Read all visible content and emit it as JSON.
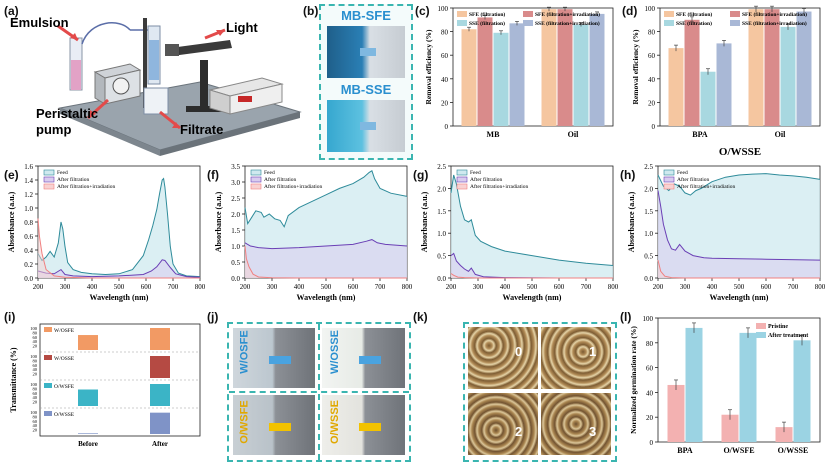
{
  "panels": {
    "a": {
      "label": "(a)",
      "callouts": [
        "Emulsion",
        "Light",
        "Peristaltic pump",
        "Filtrate"
      ]
    },
    "b": {
      "label": "(b)",
      "photo_labels": [
        "MB-SFE",
        "MB-SSE"
      ]
    },
    "c": {
      "label": "(c)"
    },
    "d": {
      "label": "(d)",
      "group_title": "O/WSSE"
    },
    "e": {
      "label": "(e)"
    },
    "f": {
      "label": "(f)"
    },
    "g": {
      "label": "(g)"
    },
    "h": {
      "label": "(h)"
    },
    "i": {
      "label": "(i)"
    },
    "j": {
      "label": "(j)",
      "photo_labels": [
        "W/OSFE",
        "W/OSSE",
        "O/WSFE",
        "O/WSSE"
      ]
    },
    "k": {
      "label": "(k)",
      "photo_labels": [
        "0",
        "1",
        "2",
        "3"
      ]
    },
    "l": {
      "label": "(l)"
    }
  },
  "colors": {
    "sfe_filtration": "#f5c6a0",
    "sfe_irradiation": "#d98b8b",
    "sse_filtration": "#a8d8e0",
    "sse_irradiation": "#a9b8d6",
    "feed_fill": "#cfe9ef",
    "feed_line": "#2e8b9a",
    "after_filtration": "#6a3fb5",
    "after_irradiation": "#f08080",
    "pristine": "#f3b1b1",
    "after_treatment": "#9bd3e3",
    "dash": "#3ab5b0"
  },
  "chart_data": [
    {
      "id": "c",
      "type": "bar",
      "ylabel": "Removal efficiency (%)",
      "categories": [
        "MB",
        "Oil"
      ],
      "ylim": [
        0,
        100
      ],
      "yticks": [
        0,
        20,
        40,
        60,
        80,
        100
      ],
      "legend": [
        "SFE (filtration)",
        "SFE (filtration+irradiation)",
        "SSE (filtration)",
        "SSE (filtration+irradiation)"
      ],
      "legend_position": "top",
      "series": [
        {
          "name": "SFE (filtration)",
          "values": [
            82,
            99
          ]
        },
        {
          "name": "SFE (filtration+irradiation)",
          "values": [
            92,
            99
          ]
        },
        {
          "name": "SSE (filtration)",
          "values": [
            79,
            86
          ]
        },
        {
          "name": "SSE (filtration+irradiation)",
          "values": [
            87,
            95
          ]
        }
      ]
    },
    {
      "id": "d",
      "type": "bar",
      "ylabel": "Removal efficiency (%)",
      "categories": [
        "BPA",
        "Oil"
      ],
      "ylim": [
        0,
        100
      ],
      "yticks": [
        0,
        20,
        40,
        60,
        80,
        100
      ],
      "legend": [
        "SFE (filtration)",
        "SFE (filtration+irradiation)",
        "SSE (filtration)",
        "SSE (filtration+irradiation)"
      ],
      "legend_position": "top",
      "series": [
        {
          "name": "SFE (filtration)",
          "values": [
            66,
            99
          ]
        },
        {
          "name": "SFE (filtration+irradiation)",
          "values": [
            90,
            99
          ]
        },
        {
          "name": "SSE (filtration)",
          "values": [
            46,
            84
          ]
        },
        {
          "name": "SSE (filtration+irradiation)",
          "values": [
            70,
            97
          ]
        }
      ]
    },
    {
      "id": "e",
      "type": "line",
      "xlabel": "Wavelength (nm)",
      "ylabel": "Absorbance (a.u.)",
      "xlim": [
        200,
        800
      ],
      "ylim": [
        0,
        1.6
      ],
      "xticks": [
        200,
        300,
        400,
        500,
        600,
        700,
        800
      ],
      "yticks": [
        0.0,
        0.2,
        0.4,
        0.6,
        0.8,
        1.0,
        1.2,
        1.4,
        1.6
      ],
      "legend": [
        "Feed",
        "After filtration",
        "After filtration+irradiation"
      ],
      "series": [
        {
          "name": "Feed",
          "x": [
            200,
            215,
            230,
            245,
            260,
            275,
            285,
            292,
            300,
            310,
            330,
            360,
            400,
            450,
            500,
            550,
            590,
            610,
            625,
            640,
            650,
            660,
            665,
            670,
            680,
            690,
            700,
            720,
            750,
            800
          ],
          "y": [
            0.35,
            0.25,
            0.3,
            0.38,
            0.3,
            0.5,
            0.8,
            0.7,
            0.45,
            0.22,
            0.12,
            0.08,
            0.06,
            0.05,
            0.06,
            0.12,
            0.32,
            0.55,
            0.75,
            0.98,
            1.2,
            1.4,
            1.42,
            1.3,
            0.9,
            0.45,
            0.2,
            0.07,
            0.03,
            0.02
          ]
        },
        {
          "name": "After filtration",
          "x": [
            200,
            230,
            260,
            285,
            300,
            330,
            400,
            500,
            590,
            620,
            640,
            660,
            670,
            690,
            710,
            750,
            800
          ],
          "y": [
            0.1,
            0.07,
            0.06,
            0.12,
            0.05,
            0.03,
            0.02,
            0.03,
            0.05,
            0.1,
            0.16,
            0.26,
            0.25,
            0.15,
            0.06,
            0.02,
            0.01
          ]
        },
        {
          "name": "After filtration+irradiation",
          "x": [
            200,
            205,
            215,
            230,
            260,
            300,
            400,
            600,
            800
          ],
          "y": [
            0.85,
            0.6,
            0.35,
            0.12,
            0.03,
            0.01,
            0.0,
            0.0,
            0.0
          ]
        }
      ]
    },
    {
      "id": "f",
      "type": "line",
      "xlabel": "Wavelength (nm)",
      "ylabel": "Absorbance (a.u.)",
      "xlim": [
        200,
        800
      ],
      "ylim": [
        0,
        3.5
      ],
      "xticks": [
        200,
        300,
        400,
        500,
        600,
        700,
        800
      ],
      "yticks": [
        0.0,
        0.5,
        1.0,
        1.5,
        2.0,
        2.5,
        3.0,
        3.5
      ],
      "legend": [
        "Feed",
        "After filtration",
        "After filtration+irradiation"
      ],
      "series": [
        {
          "name": "Feed",
          "x": [
            200,
            210,
            225,
            240,
            260,
            270,
            290,
            310,
            330,
            345,
            360,
            400,
            450,
            500,
            550,
            600,
            640,
            660,
            670,
            680,
            700,
            740,
            800
          ],
          "y": [
            2.2,
            1.7,
            1.9,
            2.1,
            2.05,
            1.9,
            2.0,
            1.85,
            1.8,
            1.6,
            1.95,
            2.2,
            2.4,
            2.6,
            2.8,
            2.95,
            3.15,
            3.3,
            3.35,
            3.1,
            2.8,
            2.65,
            2.55
          ]
        },
        {
          "name": "After filtration",
          "x": [
            200,
            220,
            250,
            300,
            400,
            500,
            600,
            650,
            670,
            690,
            720,
            800
          ],
          "y": [
            1.1,
            1.0,
            0.95,
            0.92,
            0.95,
            1.0,
            1.05,
            1.15,
            1.2,
            1.1,
            1.05,
            1.0
          ]
        },
        {
          "name": "After filtration+irradiation",
          "x": [
            200,
            205,
            215,
            230,
            250,
            300,
            400,
            800
          ],
          "y": [
            1.0,
            0.6,
            0.35,
            0.12,
            0.03,
            0.01,
            0.0,
            0.0
          ]
        }
      ]
    },
    {
      "id": "g",
      "type": "line",
      "xlabel": "Wavelength (nm)",
      "ylabel": "Absorbance (a.u.)",
      "xlim": [
        200,
        800
      ],
      "ylim": [
        0,
        2.5
      ],
      "xticks": [
        200,
        300,
        400,
        500,
        600,
        700,
        800
      ],
      "yticks": [
        0.0,
        0.5,
        1.0,
        1.5,
        2.0,
        2.5
      ],
      "legend": [
        "Feed",
        "After filtration",
        "After filtration+irradiation"
      ],
      "series": [
        {
          "name": "Feed",
          "x": [
            200,
            210,
            220,
            235,
            250,
            265,
            275,
            290,
            310,
            350,
            400,
            450,
            500,
            600,
            700,
            800
          ],
          "y": [
            1.9,
            2.3,
            2.1,
            1.6,
            1.3,
            1.25,
            1.3,
            0.95,
            0.82,
            0.7,
            0.6,
            0.55,
            0.5,
            0.4,
            0.33,
            0.28
          ]
        },
        {
          "name": "After filtration",
          "x": [
            200,
            210,
            220,
            235,
            250,
            265,
            275,
            290,
            320,
            400,
            600,
            800
          ],
          "y": [
            0.5,
            0.55,
            0.38,
            0.28,
            0.2,
            0.15,
            0.22,
            0.08,
            0.03,
            0.01,
            0.0,
            0.0
          ]
        },
        {
          "name": "After filtration+irradiation",
          "x": [
            200,
            210,
            225,
            250,
            300,
            400,
            800
          ],
          "y": [
            0.1,
            0.06,
            0.02,
            0.01,
            0.0,
            0.0,
            0.0
          ]
        }
      ]
    },
    {
      "id": "h",
      "type": "line",
      "xlabel": "Wavelength (nm)",
      "ylabel": "Absorbance (a.u.)",
      "xlim": [
        200,
        800
      ],
      "ylim": [
        0,
        2.5
      ],
      "xticks": [
        200,
        300,
        400,
        500,
        600,
        700,
        800
      ],
      "yticks": [
        0.0,
        0.5,
        1.0,
        1.5,
        2.0,
        2.5
      ],
      "legend": [
        "Feed",
        "After filtration",
        "After filtration+irradiation"
      ],
      "series": [
        {
          "name": "Feed",
          "x": [
            200,
            220,
            240,
            260,
            280,
            300,
            320,
            340,
            360,
            400,
            450,
            500,
            550,
            600,
            650,
            700,
            750,
            800
          ],
          "y": [
            2.3,
            2.05,
            1.95,
            2.1,
            2.05,
            1.9,
            1.85,
            1.95,
            2.0,
            2.15,
            2.25,
            2.3,
            2.32,
            2.33,
            2.3,
            2.28,
            2.25,
            2.2
          ]
        },
        {
          "name": "After filtration",
          "x": [
            200,
            210,
            220,
            235,
            250,
            265,
            280,
            300,
            330,
            370,
            400,
            500,
            600,
            800
          ],
          "y": [
            1.95,
            1.6,
            1.2,
            0.85,
            0.65,
            0.62,
            0.75,
            0.6,
            0.5,
            0.45,
            0.44,
            0.43,
            0.42,
            0.4
          ]
        },
        {
          "name": "After filtration+irradiation",
          "x": [
            200,
            210,
            225,
            250,
            300,
            400,
            800
          ],
          "y": [
            0.4,
            0.15,
            0.04,
            0.01,
            0.0,
            0.0,
            0.0
          ]
        }
      ]
    },
    {
      "id": "i",
      "type": "bar",
      "xlabel": "",
      "ylabel": "Transmittance (%)",
      "categories": [
        "Before",
        "After"
      ],
      "yticks": [
        20,
        40,
        60,
        80,
        100
      ],
      "groups": [
        {
          "name": "W/OSFE",
          "values": [
            68,
            100
          ]
        },
        {
          "name": "W/OSSE",
          "values": [
            0,
            100
          ]
        },
        {
          "name": "O/WSFE",
          "values": [
            75,
            100
          ]
        },
        {
          "name": "O/WSSE",
          "values": [
            3,
            97
          ]
        }
      ]
    },
    {
      "id": "l",
      "type": "bar",
      "ylabel": "Normalized germination rate (%)",
      "categories": [
        "BPA",
        "O/WSFE",
        "O/WSSE"
      ],
      "ylim": [
        0,
        100
      ],
      "yticks": [
        0,
        20,
        40,
        60,
        80,
        100
      ],
      "legend": [
        "Pristine",
        "After treatment"
      ],
      "legend_position": "top-right",
      "series": [
        {
          "name": "Pristine",
          "values": [
            46,
            22,
            12
          ]
        },
        {
          "name": "After treatment",
          "values": [
            92,
            88,
            82
          ]
        }
      ]
    }
  ]
}
